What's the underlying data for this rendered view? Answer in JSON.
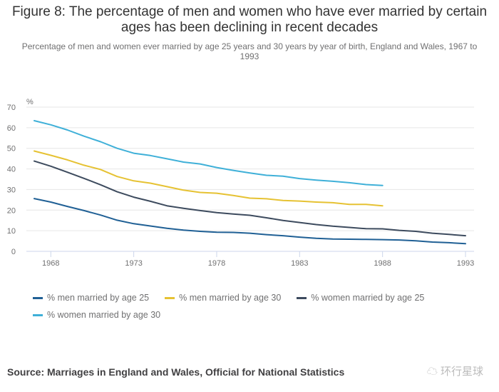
{
  "header": {
    "title": "Figure 8: The percentage of men and women who have ever married by certain ages has been declining in recent decades",
    "subtitle": "Percentage of men and women ever married by age 25 years and 30 years by year of birth, England and Wales, 1967 to 1993"
  },
  "chart_data": {
    "type": "line",
    "title": "Figure 8: The percentage of men and women who have ever married by certain ages has been declining in recent decades",
    "subtitle": "Percentage of men and women ever married by age 25 years and 30 years by year of birth, England and Wales, 1967 to 1993",
    "xlabel": "",
    "ylabel": "%",
    "x": [
      1967,
      1968,
      1969,
      1970,
      1971,
      1972,
      1973,
      1974,
      1975,
      1976,
      1977,
      1978,
      1979,
      1980,
      1981,
      1982,
      1983,
      1984,
      1985,
      1986,
      1987,
      1988,
      1989,
      1990,
      1991,
      1992,
      1993
    ],
    "x_ticks": [
      "1968",
      "1973",
      "1978",
      "1983",
      "1988",
      "1993"
    ],
    "y_ticks": [
      "0",
      "10",
      "20",
      "30",
      "40",
      "50",
      "60",
      "70"
    ],
    "xlim": [
      1967,
      1993
    ],
    "ylim": [
      0,
      70
    ],
    "grid": true,
    "legend_position": "bottom",
    "series": [
      {
        "name": "% men married by age 25",
        "color": "#206095",
        "values": [
          25.6,
          23.9,
          21.8,
          19.8,
          17.6,
          15.1,
          13.4,
          12.3,
          11.2,
          10.3,
          9.7,
          9.3,
          9.2,
          8.8,
          8.1,
          7.6,
          6.9,
          6.3,
          6.0,
          5.9,
          5.8,
          5.7,
          5.5,
          5.1,
          4.5,
          4.2,
          3.7
        ]
      },
      {
        "name": "% men married by age 30",
        "color": "#e6c233",
        "values": [
          48.7,
          46.6,
          44.4,
          41.8,
          39.7,
          36.3,
          34.2,
          33.1,
          31.4,
          29.7,
          28.6,
          28.2,
          27.1,
          25.8,
          25.5,
          24.7,
          24.4,
          23.9,
          23.6,
          22.8,
          22.8,
          22.1,
          null,
          null,
          null,
          null,
          null
        ]
      },
      {
        "name": "% women married by age 25",
        "color": "#3d4b5e",
        "values": [
          43.8,
          41.3,
          38.4,
          35.4,
          32.3,
          28.9,
          26.3,
          24.3,
          22.1,
          20.9,
          19.8,
          18.8,
          18.1,
          17.5,
          16.3,
          15.0,
          14.0,
          13.0,
          12.2,
          11.6,
          11.0,
          10.9,
          10.2,
          9.7,
          8.8,
          8.2,
          7.6
        ]
      },
      {
        "name": "% women married by age 30",
        "color": "#3fb0d8",
        "values": [
          63.4,
          61.4,
          58.9,
          55.9,
          53.2,
          50.0,
          47.6,
          46.5,
          44.9,
          43.3,
          42.4,
          40.7,
          39.3,
          38.0,
          36.9,
          36.5,
          35.3,
          34.6,
          34.0,
          33.3,
          32.4,
          32.0,
          null,
          null,
          null,
          null,
          null
        ]
      }
    ]
  },
  "footer": {
    "source": "Source: Marriages in England and Wales, Official for National Statistics",
    "watermark": "环行星球"
  }
}
